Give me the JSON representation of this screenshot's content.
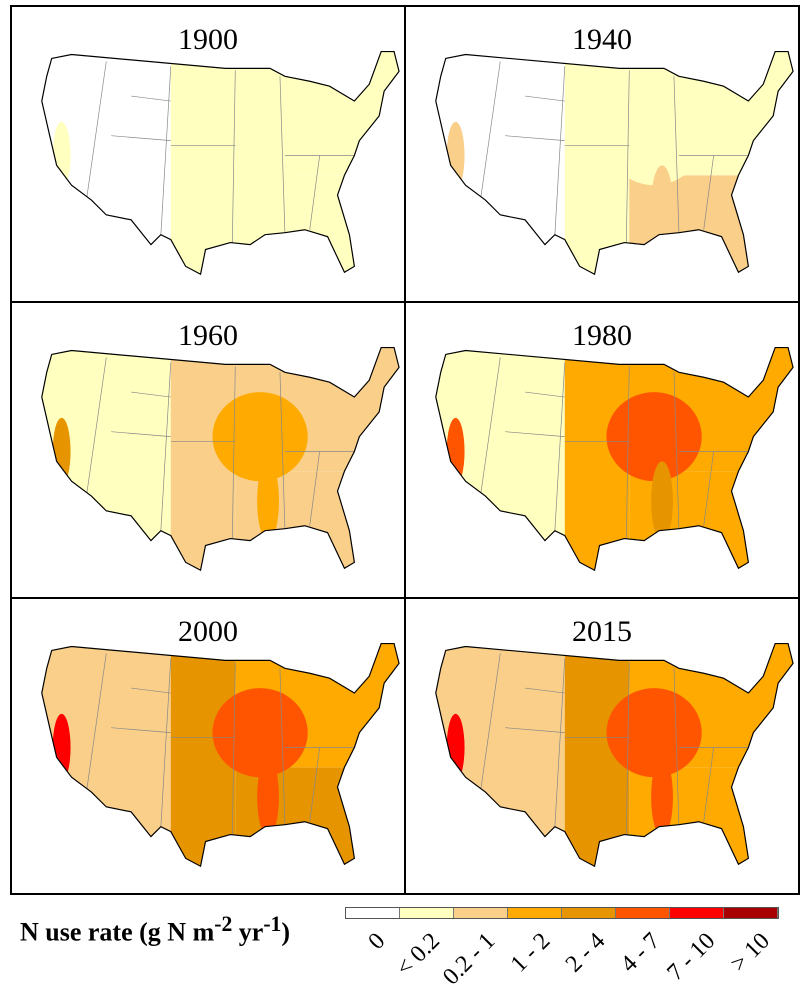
{
  "legend": {
    "title": "N use rate (g N m",
    "sup1": "-2",
    "mid": " yr",
    "sup2": "-1",
    "end": ")",
    "classes": [
      {
        "label": "0",
        "color": "#ffffff"
      },
      {
        "label": "< 0.2",
        "color": "#ffffc0"
      },
      {
        "label": "0.2 - 1",
        "color": "#f9cf8a"
      },
      {
        "label": "1 - 2",
        "color": "#ffaa00"
      },
      {
        "label": "2 - 4",
        "color": "#e69500"
      },
      {
        "label": "4 - 7",
        "color": "#ff5500"
      },
      {
        "label": "7 - 10",
        "color": "#ff0000"
      },
      {
        "label": "> 10",
        "color": "#a80000"
      }
    ]
  },
  "panels": [
    {
      "year": "1900",
      "regions": {
        "west": "0",
        "plains": "< 0.2",
        "midwest": "< 0.2",
        "southeast": "< 0.2",
        "northeast": "< 0.2",
        "california": "< 0.2",
        "mississippi": "< 0.2"
      }
    },
    {
      "year": "1940",
      "regions": {
        "west": "0",
        "plains": "< 0.2",
        "midwest": "< 0.2",
        "southeast": "0.2 - 1",
        "northeast": "< 0.2",
        "california": "0.2 - 1",
        "mississippi": "0.2 - 1"
      }
    },
    {
      "year": "1960",
      "regions": {
        "west": "< 0.2",
        "plains": "0.2 - 1",
        "midwest": "1 - 2",
        "southeast": "0.2 - 1",
        "northeast": "0.2 - 1",
        "california": "2 - 4",
        "mississippi": "1 - 2"
      }
    },
    {
      "year": "1980",
      "regions": {
        "west": "< 0.2",
        "plains": "1 - 2",
        "midwest": "4 - 7",
        "southeast": "1 - 2",
        "northeast": "1 - 2",
        "california": "4 - 7",
        "mississippi": "2 - 4"
      }
    },
    {
      "year": "2000",
      "regions": {
        "west": "0.2 - 1",
        "plains": "2 - 4",
        "midwest": "4 - 7",
        "southeast": "2 - 4",
        "northeast": "1 - 2",
        "california": "7 - 10",
        "mississippi": "4 - 7"
      }
    },
    {
      "year": "2015",
      "regions": {
        "west": "0.2 - 1",
        "plains": "2 - 4",
        "midwest": "4 - 7",
        "southeast": "1 - 2",
        "northeast": "1 - 2",
        "california": "7 - 10",
        "mississippi": "4 - 7"
      }
    }
  ]
}
